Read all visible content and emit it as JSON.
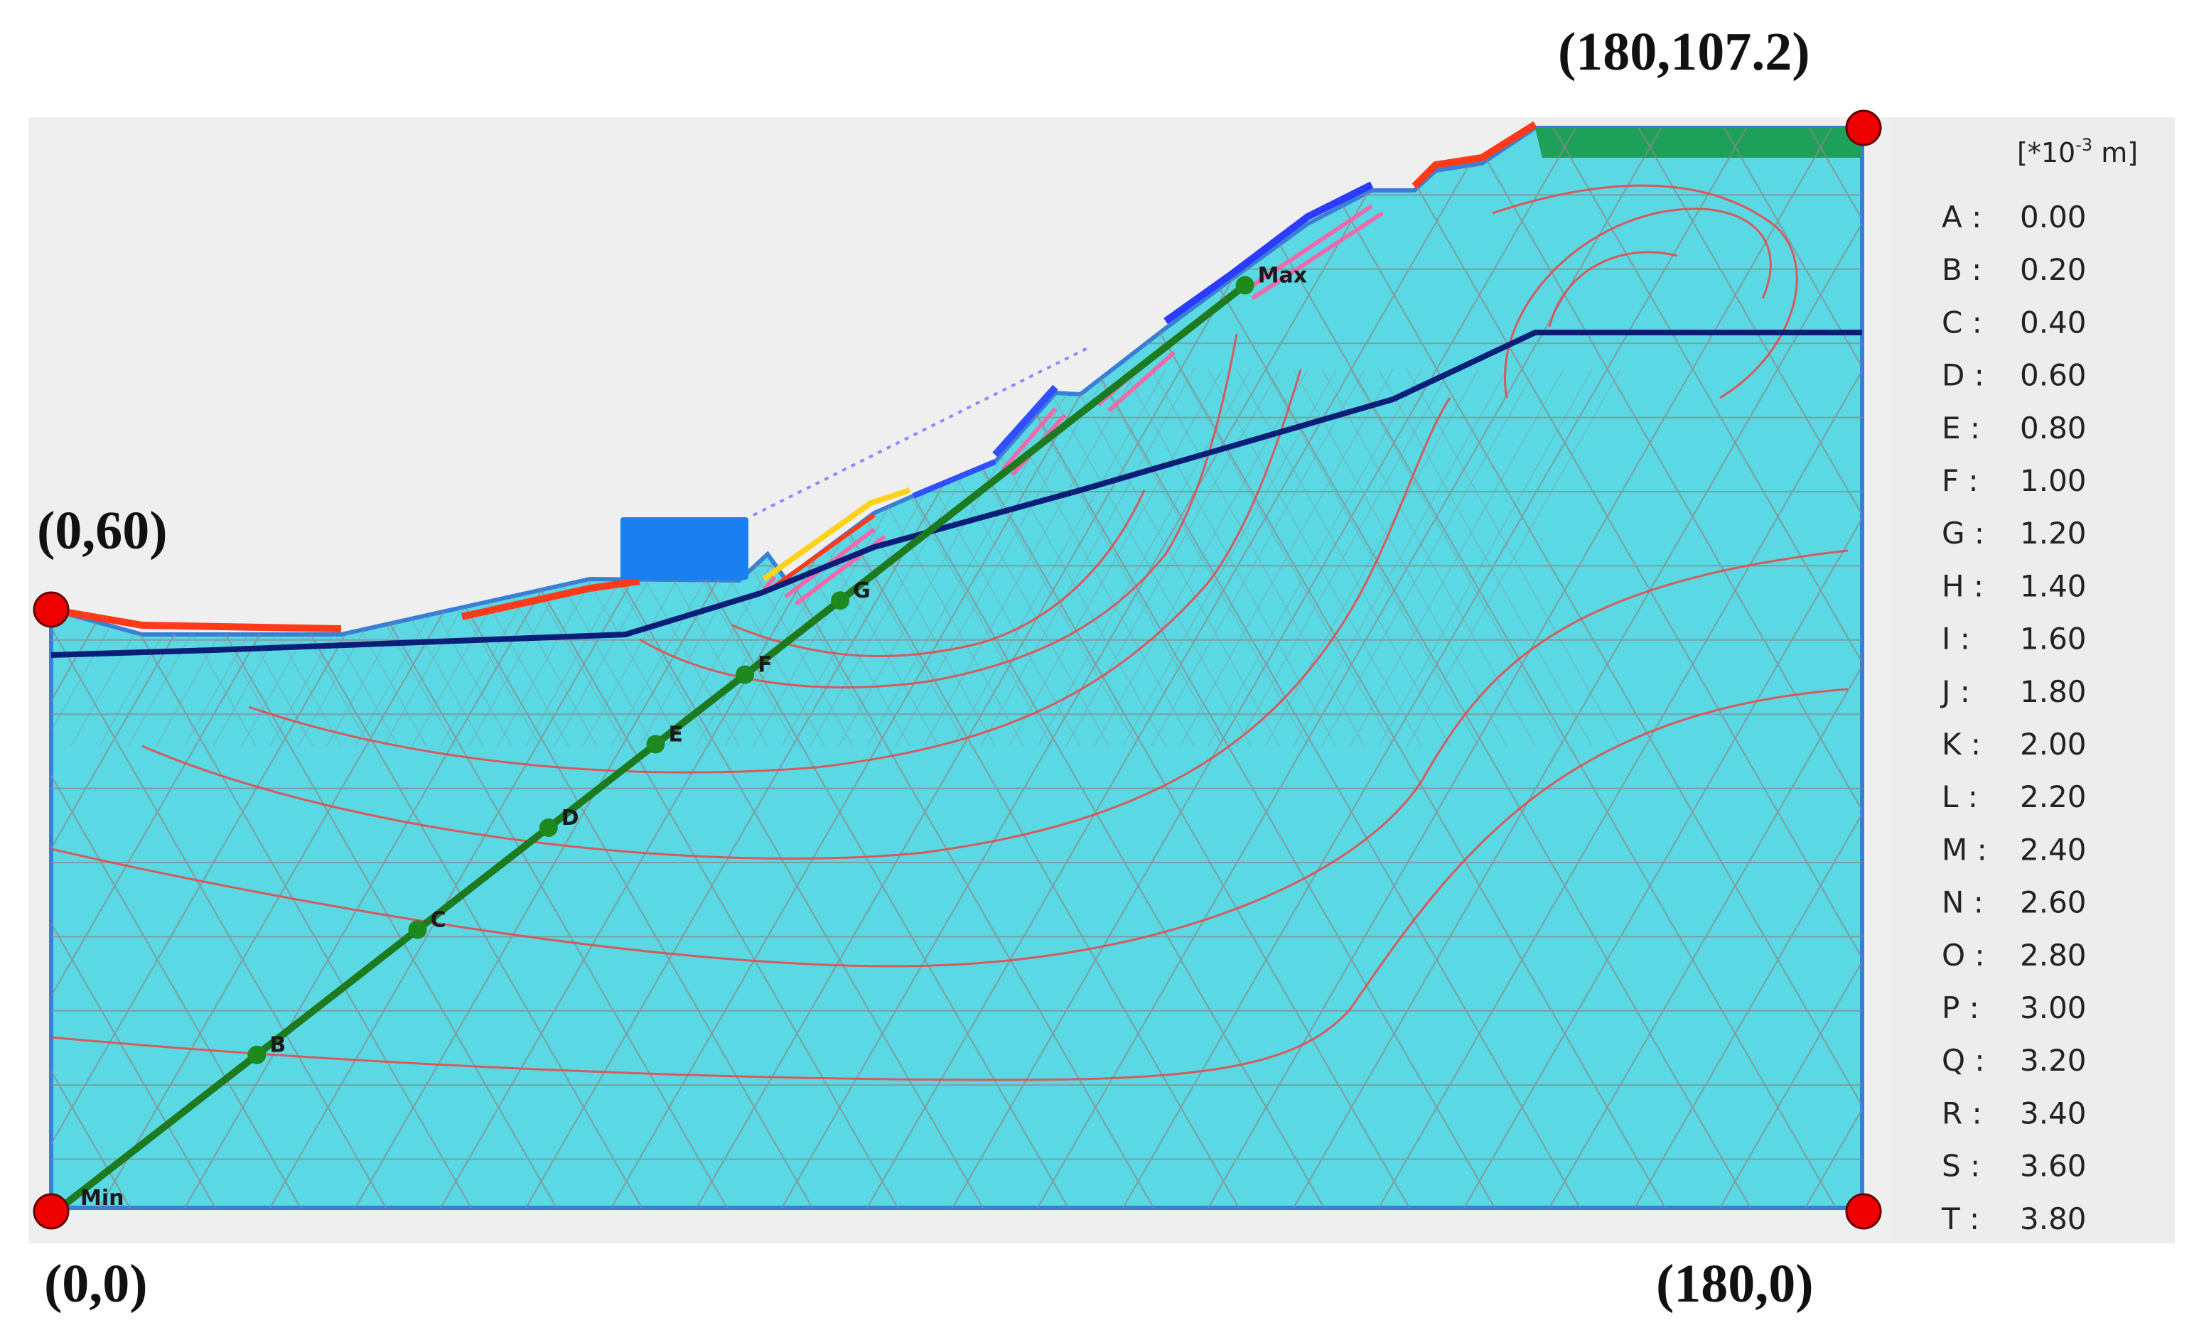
{
  "corners": {
    "top_left": "(0,60)",
    "top_right": "(180,107.2)",
    "bottom_left": "(0,0)",
    "bottom_right": "(180,0)"
  },
  "legend": {
    "unit_prefix": "[*10",
    "unit_exp": "-3",
    "unit_suffix": " m]",
    "items": [
      {
        "label": "A :",
        "value": "0.00"
      },
      {
        "label": "B :",
        "value": "0.20"
      },
      {
        "label": "C :",
        "value": "0.40"
      },
      {
        "label": "D :",
        "value": "0.60"
      },
      {
        "label": "E :",
        "value": "0.80"
      },
      {
        "label": "F :",
        "value": "1.00"
      },
      {
        "label": "G :",
        "value": "1.20"
      },
      {
        "label": "H :",
        "value": "1.40"
      },
      {
        "label": "I :",
        "value": "1.60"
      },
      {
        "label": "J :",
        "value": "1.80"
      },
      {
        "label": "K :",
        "value": "2.00"
      },
      {
        "label": "L :",
        "value": "2.20"
      },
      {
        "label": "M :",
        "value": "2.40"
      },
      {
        "label": "N :",
        "value": "2.60"
      },
      {
        "label": "O :",
        "value": "2.80"
      },
      {
        "label": "P :",
        "value": "3.00"
      },
      {
        "label": "Q :",
        "value": "3.20"
      },
      {
        "label": "R :",
        "value": "3.40"
      },
      {
        "label": "S :",
        "value": "3.60"
      },
      {
        "label": "T :",
        "value": "3.80"
      }
    ]
  },
  "profile_line": {
    "labels": [
      "Min",
      "B",
      "C",
      "D",
      "E",
      "F",
      "G",
      "Max"
    ]
  },
  "colors": {
    "soil": "#5ad8e3",
    "background": "#efefef",
    "profile_line": "#1e7a1e",
    "phreatic_line": "#0a1e78",
    "contour": "#ee4444",
    "mesh": "#8a8a8a",
    "corner_marker": "#ee0000",
    "load_block": "#1a7ff0"
  }
}
